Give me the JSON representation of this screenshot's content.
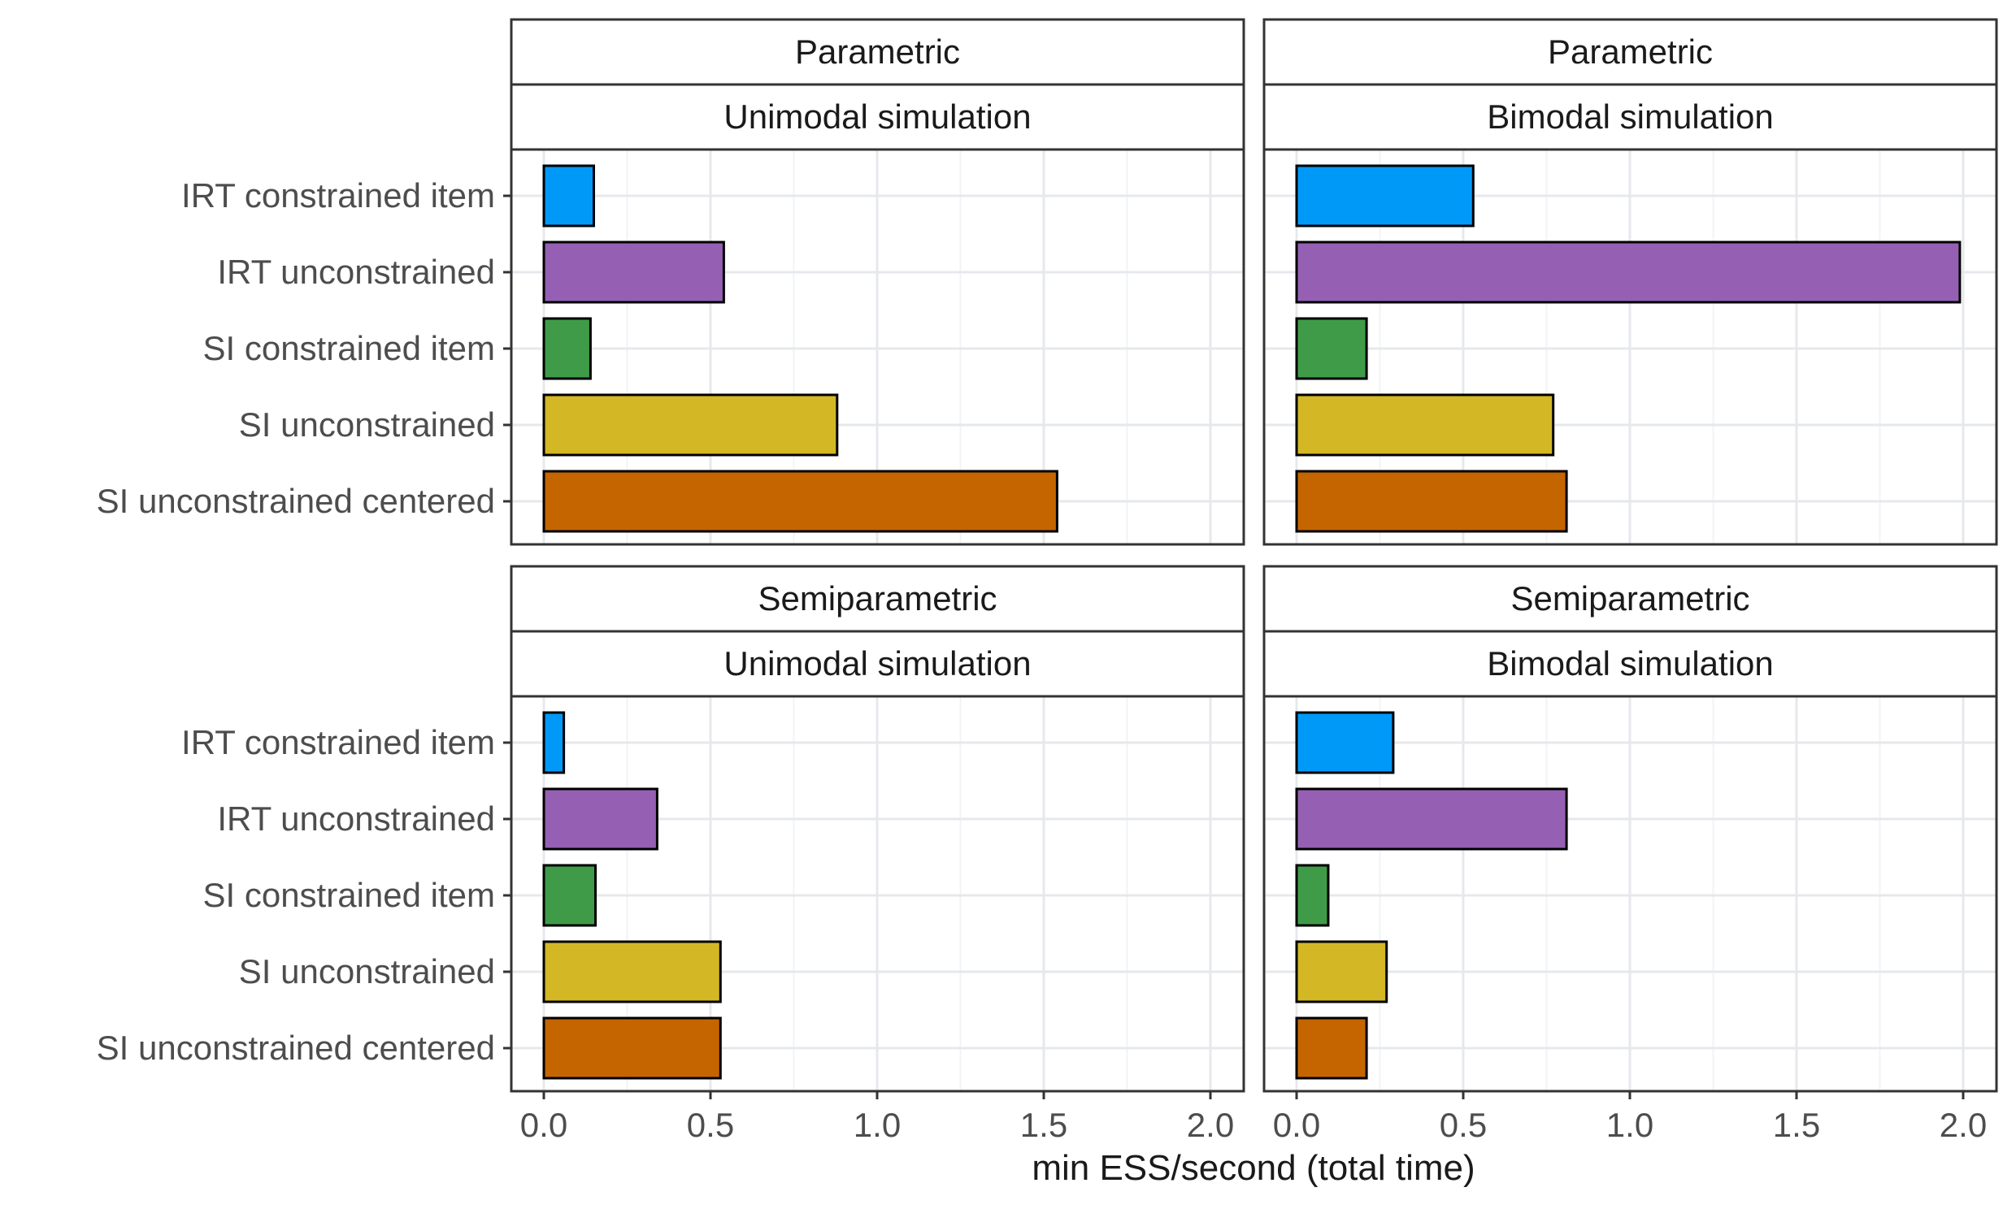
{
  "chart_data": {
    "type": "bar",
    "orientation": "horizontal",
    "xlabel": "min ESS/second (total time)",
    "xlim": [
      0,
      2.1
    ],
    "xticks": [
      0,
      0.5,
      1,
      1.5,
      2
    ],
    "xtick_labels": [
      "0.0",
      "0.5",
      "1.0",
      "1.5",
      "2.0"
    ],
    "categories": [
      "IRT constrained item",
      "IRT unconstrained",
      "SI constrained item",
      "SI unconstrained",
      "SI unconstrained centered"
    ],
    "colors": [
      "#0099f8",
      "#9560b4",
      "#3f9b47",
      "#d4b724",
      "#c46500"
    ],
    "grid": true,
    "facets": [
      {
        "row": "Parametric",
        "col": "Unimodal simulation",
        "values": [
          0.15,
          0.54,
          0.14,
          0.88,
          1.54
        ]
      },
      {
        "row": "Parametric",
        "col": "Bimodal simulation",
        "values": [
          0.53,
          1.99,
          0.21,
          0.77,
          0.81
        ]
      },
      {
        "row": "Semiparametric",
        "col": "Unimodal simulation",
        "values": [
          0.06,
          0.34,
          0.155,
          0.53,
          0.53
        ]
      },
      {
        "row": "Semiparametric",
        "col": "Bimodal simulation",
        "values": [
          0.29,
          0.81,
          0.095,
          0.27,
          0.21
        ]
      }
    ]
  }
}
